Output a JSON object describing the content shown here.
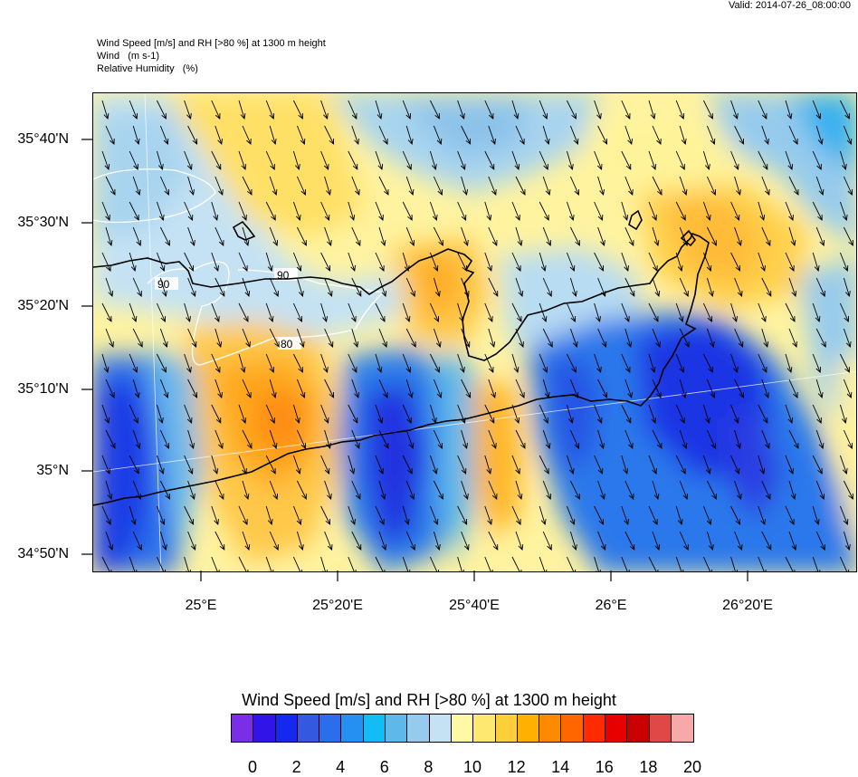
{
  "valid_label": "Valid: 2014-07-26_08:00:00",
  "titles": {
    "line1": "Wind Speed [m/s] and RH [>80 %] at 1300 m height",
    "line2": "Wind   (m s-1)",
    "line3": "Relative Humidity   (%)"
  },
  "map": {
    "lat_labels": [
      "35°40'N",
      "35°30'N",
      "35°20'N",
      "35°10'N",
      "35°N",
      "34°50'N"
    ],
    "lon_labels": [
      "25°E",
      "25°20'E",
      "25°40'E",
      "26°E",
      "26°20'E"
    ],
    "contour_labels": [
      "90",
      "90",
      "80"
    ],
    "projection_note": ""
  },
  "colorbar": {
    "title": "Wind Speed [m/s] and RH [>80 %] at 1300 m height",
    "colors": [
      "#7a2ee6",
      "#3014e8",
      "#1428f0",
      "#3458e0",
      "#2b6eeb",
      "#2590f2",
      "#12bdf5",
      "#5fb8ea",
      "#96cbed",
      "#c4e2f4",
      "#fff9a6",
      "#ffe870",
      "#ffcf3a",
      "#ffb000",
      "#ff8a00",
      "#ff6600",
      "#ff2a00",
      "#e80000",
      "#c80000",
      "#e04848",
      "#f7a8a8"
    ],
    "ticks": [
      "0",
      "2",
      "4",
      "6",
      "8",
      "10",
      "12",
      "14",
      "16",
      "18",
      "20"
    ]
  }
}
